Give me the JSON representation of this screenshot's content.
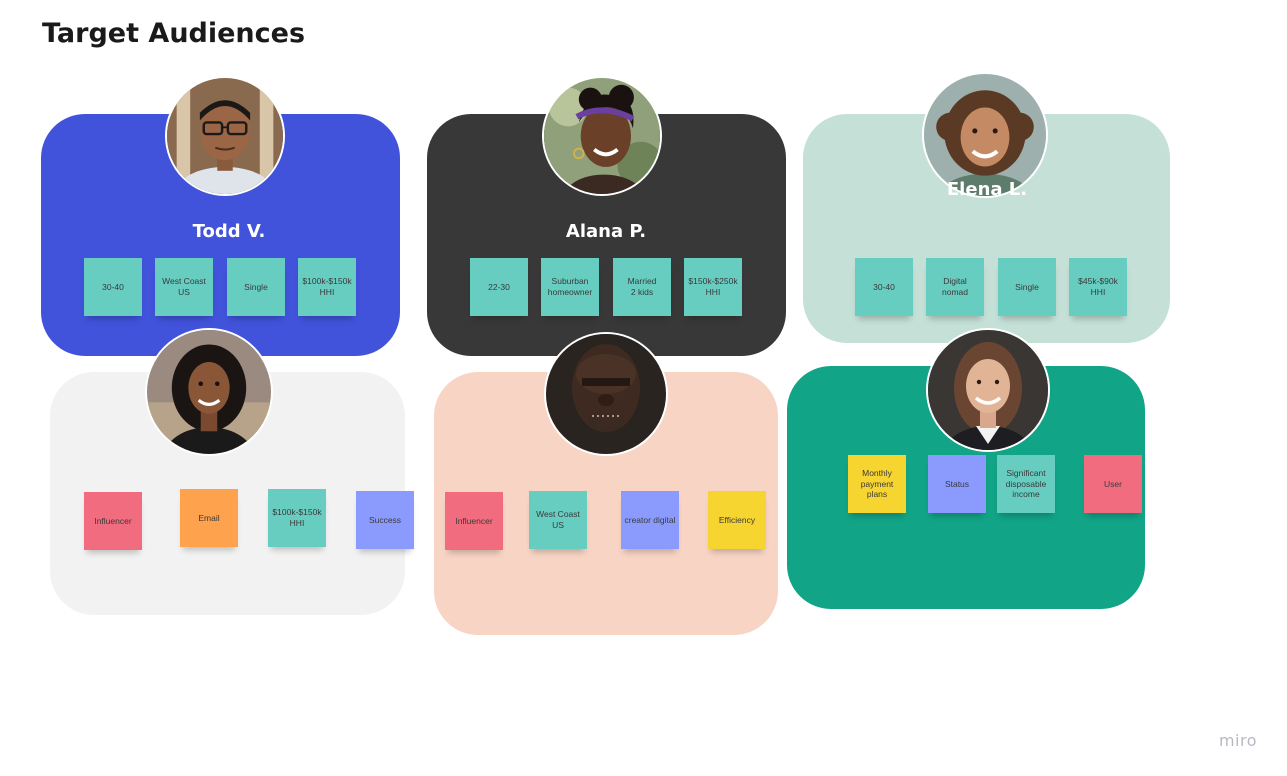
{
  "board": {
    "title": "Target Audiences",
    "logo": "miro"
  },
  "colors": {
    "teal_note": "#67cdc1",
    "pink_note": "#f16c7f",
    "orange_note": "#fea24e",
    "blue_note": "#8b9bfd",
    "yellow_note": "#f7d531",
    "card_blue": "#4153db",
    "card_dark": "#383838",
    "card_mint": "#c4e0d7",
    "card_gray": "#f2f2f2",
    "card_peach": "#f8d4c4",
    "card_green": "#12a486"
  },
  "personas": [
    {
      "name": "Todd V.",
      "avatar_icon": "person-photo-icon",
      "notes": [
        "30-40",
        "West Coast\nUS",
        "Single",
        "$100k-$150k\nHHI"
      ]
    },
    {
      "name": "Alana P.",
      "avatar_icon": "person-photo-icon",
      "notes": [
        "22-30",
        "Suburban\nhomeowner",
        "Married\n2 kids",
        "$150k-$250k\nHHI"
      ]
    },
    {
      "name": "Elena L.",
      "avatar_icon": "person-photo-icon",
      "notes": [
        "30-40",
        "Digital\nnomad",
        "Single",
        "$45k-$90k\nHHI"
      ]
    },
    {
      "name": "",
      "avatar_icon": "person-photo-icon",
      "notes": [
        "Influencer",
        "Email",
        "$100k-$150k\nHHI",
        "Success"
      ]
    },
    {
      "name": "",
      "avatar_icon": "person-photo-icon",
      "notes": [
        "Influencer",
        "West Coast\nUS",
        "creator digital",
        "Efficiency"
      ]
    },
    {
      "name": "",
      "avatar_icon": "person-photo-icon",
      "notes": [
        "Monthly\npayment\nplans",
        "Status",
        "Significant\ndisposable\nincome",
        "User"
      ]
    }
  ]
}
